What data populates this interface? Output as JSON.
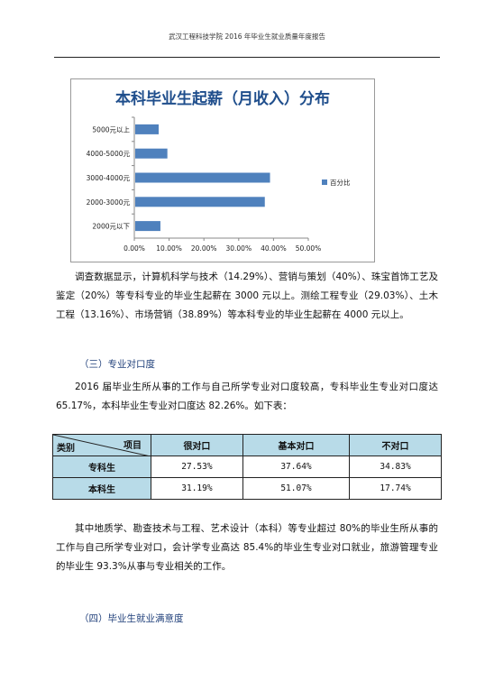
{
  "header": {
    "title": "武汉工程科技学院 2016 年毕业生就业质量年度报告"
  },
  "chart_data": {
    "type": "bar",
    "orientation": "horizontal",
    "title": "本科毕业生起薪（月收入）分布",
    "categories": [
      "5000元以上",
      "4000-5000元",
      "3000-4000元",
      "2000-3000元",
      "2000元以下"
    ],
    "series": [
      {
        "name": "百分比",
        "values": [
          7,
          9.5,
          39,
          37.5,
          7.5
        ],
        "color": "#4f81bd"
      }
    ],
    "xticks": [
      "0.00%",
      "10.00%",
      "20.00%",
      "30.00%",
      "40.00%",
      "50.00%"
    ],
    "xlim": [
      0,
      50
    ],
    "legend_position": "right",
    "grid": false
  },
  "para1": "调查数据显示，计算机科学与技术（14.29%）、营销与策划（40%）、珠宝首饰工艺及鉴定（20%）等专科专业的毕业生起薪在 3000 元以上。测绘工程专业（29.03%）、土木工程（13.16%）、市场营销（38.89%）等本科专业的毕业生起薪在 4000 元以上。",
  "section3": "（三）专业对口度",
  "para2": "2016 届毕业生所从事的工作与自己所学专业对口度较高，专科毕业生专业对口度达 65.17%，本科毕业生专业对口度达 82.26%。如下表：",
  "table": {
    "corner_left": "类别",
    "corner_right": "项目",
    "columns": [
      "很对口",
      "基本对口",
      "不对口"
    ],
    "rows": [
      {
        "label": "专科生",
        "values": [
          "27.53%",
          "37.64%",
          "34.83%"
        ]
      },
      {
        "label": "本科生",
        "values": [
          "31.19%",
          "51.07%",
          "17.74%"
        ]
      }
    ]
  },
  "para3": "其中地质学、勘查技术与工程、艺术设计（本科）等专业超过 80%的毕业生所从事的工作与自己所学专业对口，会计学专业高达 85.4%的毕业生专业对口就业，旅游管理专业的毕业生 93.3%从事与专业相关的工作。",
  "section4": "（四）毕业生就业满意度"
}
